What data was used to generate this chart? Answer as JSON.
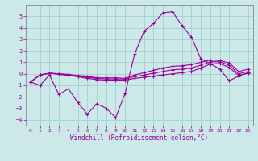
{
  "xlabel": "Windchill (Refroidissement éolien,°C)",
  "background_color": "#cce8e8",
  "line_color": "#990099",
  "grid_color": "#99cccc",
  "x": [
    0,
    1,
    2,
    3,
    4,
    5,
    6,
    7,
    8,
    9,
    10,
    11,
    12,
    13,
    14,
    15,
    16,
    17,
    18,
    19,
    20,
    21,
    22,
    23
  ],
  "line1": [
    -0.7,
    -1.0,
    -0.1,
    -1.8,
    -1.3,
    -2.5,
    -3.5,
    -2.6,
    -3.0,
    -3.8,
    -1.7,
    1.7,
    3.7,
    4.4,
    5.3,
    5.4,
    4.2,
    3.2,
    1.3,
    0.9,
    0.4,
    -0.6,
    -0.2,
    0.1
  ],
  "line2": [
    -0.7,
    -0.1,
    0.05,
    -0.05,
    -0.15,
    -0.25,
    -0.4,
    -0.5,
    -0.55,
    -0.55,
    -0.55,
    -0.4,
    -0.3,
    -0.2,
    -0.1,
    0.0,
    0.1,
    0.2,
    0.5,
    0.85,
    0.9,
    0.55,
    -0.15,
    0.05
  ],
  "line3": [
    -0.7,
    -0.1,
    0.05,
    0.0,
    -0.1,
    -0.2,
    -0.3,
    -0.4,
    -0.45,
    -0.45,
    -0.45,
    -0.25,
    -0.1,
    0.05,
    0.2,
    0.35,
    0.4,
    0.5,
    0.75,
    1.05,
    1.05,
    0.75,
    0.0,
    0.2
  ],
  "line4": [
    -0.7,
    -0.1,
    0.05,
    0.0,
    -0.05,
    -0.15,
    -0.2,
    -0.35,
    -0.35,
    -0.35,
    -0.4,
    -0.1,
    0.1,
    0.3,
    0.5,
    0.65,
    0.7,
    0.8,
    1.0,
    1.2,
    1.15,
    0.95,
    0.2,
    0.4
  ],
  "ylim": [
    -4.5,
    6.0
  ],
  "yticks": [
    -4,
    -3,
    -2,
    -1,
    0,
    1,
    2,
    3,
    4,
    5
  ],
  "xticks": [
    0,
    1,
    2,
    3,
    4,
    5,
    6,
    7,
    8,
    9,
    10,
    11,
    12,
    13,
    14,
    15,
    16,
    17,
    18,
    19,
    20,
    21,
    22,
    23
  ]
}
